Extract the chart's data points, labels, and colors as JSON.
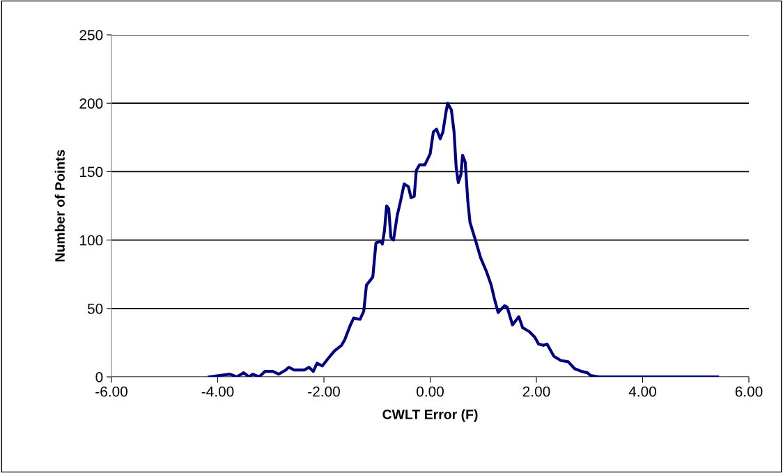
{
  "chart_data": {
    "type": "line",
    "xlabel": "CWLT Error (F)",
    "ylabel": "Number of Points",
    "xlim": [
      -6,
      6
    ],
    "xticks": [
      {
        "value": -6,
        "label": "-6.00"
      },
      {
        "value": -4,
        "label": "-4.00"
      },
      {
        "value": -2,
        "label": "-2.00"
      },
      {
        "value": 0,
        "label": "0.00"
      },
      {
        "value": 2,
        "label": "2.00"
      },
      {
        "value": 4,
        "label": "4.00"
      },
      {
        "value": 6,
        "label": "6.00"
      }
    ],
    "ylim": [
      0,
      250
    ],
    "yticks": [
      0,
      50,
      100,
      150,
      200,
      250
    ],
    "grid": "y",
    "legend": false,
    "marker": "none",
    "line_style": "solid",
    "series": [
      {
        "color": "#000080",
        "x": [
          -4.16,
          -3.77,
          -3.64,
          -3.51,
          -3.41,
          -3.34,
          -3.22,
          -3.11,
          -2.96,
          -2.85,
          -2.72,
          -2.66,
          -2.56,
          -2.37,
          -2.28,
          -2.2,
          -2.13,
          -2.03,
          -1.93,
          -1.8,
          -1.67,
          -1.61,
          -1.5,
          -1.44,
          -1.32,
          -1.25,
          -1.2,
          -1.08,
          -1.02,
          -0.93,
          -0.9,
          -0.86,
          -0.82,
          -0.78,
          -0.74,
          -0.69,
          -0.62,
          -0.56,
          -0.49,
          -0.41,
          -0.36,
          -0.3,
          -0.26,
          -0.2,
          -0.1,
          0,
          0.06,
          0.12,
          0.19,
          0.24,
          0.3,
          0.33,
          0.4,
          0.45,
          0.49,
          0.53,
          0.58,
          0.61,
          0.66,
          0.71,
          0.75,
          0.86,
          0.95,
          1.06,
          1.15,
          1.21,
          1.28,
          1.4,
          1.45,
          1.55,
          1.67,
          1.74,
          1.87,
          1.97,
          2.04,
          2.13,
          2.2,
          2.33,
          2.46,
          2.6,
          2.72,
          2.85,
          2.96,
          3.02,
          3.18,
          5.41
        ],
        "values": [
          0,
          2,
          0,
          3,
          0,
          2,
          0,
          4,
          4,
          2,
          5,
          7,
          5,
          5,
          7,
          4,
          10,
          8,
          13,
          19,
          23,
          27,
          38,
          43,
          42,
          48,
          67,
          73,
          98,
          99,
          97,
          107,
          125,
          123,
          102,
          100,
          118,
          128,
          141,
          139,
          131,
          132,
          151,
          155,
          155,
          163,
          179,
          181,
          174,
          179,
          194,
          200,
          195,
          179,
          153,
          142,
          148,
          162,
          157,
          128,
          113,
          99,
          87,
          77,
          67,
          57,
          47,
          52,
          51,
          38,
          44,
          36,
          33,
          29,
          24,
          23,
          24,
          15,
          12,
          11,
          6,
          4,
          3,
          1,
          0,
          0
        ]
      }
    ]
  }
}
